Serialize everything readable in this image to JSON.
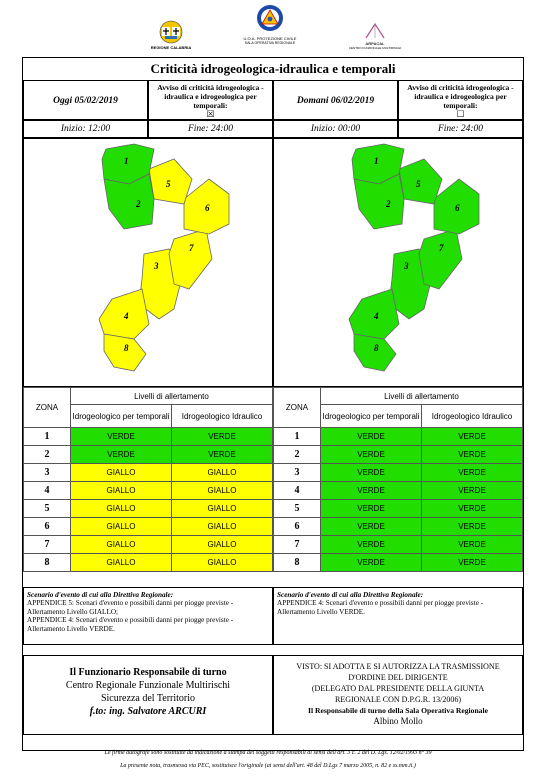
{
  "logos": {
    "left_caption": "REGIONE CALABRIA",
    "center_caption_1": "U.O.A. PROTEZIONE CIVILE",
    "center_caption_2": "SALA OPERATIVA REGIONALE",
    "right_caption_1": "ARPACAL",
    "right_caption_2": "CENTRO FUNZIONALE MULTIRISCHI"
  },
  "title": "Criticità idrogeologica-idraulica e temporali",
  "today": {
    "date": "Oggi 05/02/2019",
    "avviso": "Avviso di criticità idrogeologica - idraulica e idrogeologica per temporali:",
    "checkbox": "☒",
    "start": "Inizio: 12:00",
    "end": "Fine: 24:00"
  },
  "tomorrow": {
    "date": "Domani 06/02/2019",
    "avviso": "Avviso di criticità idrogeologica - idraulica e idrogeologica per temporali:",
    "checkbox": "☐",
    "start": "Inizio: 00:00",
    "end": "Fine: 24:00"
  },
  "zone_numbers": [
    "1",
    "2",
    "5",
    "6",
    "3",
    "7",
    "4",
    "8"
  ],
  "table_headers": {
    "zona": "ZONA",
    "livelli": "Livelli di allertamento",
    "col1": "Idrogeologico per temporali",
    "col2": "Idrogeologico Idraulico"
  },
  "today_rows": [
    {
      "zone": "1",
      "a": "VERDE",
      "b": "VERDE",
      "level": "green"
    },
    {
      "zone": "2",
      "a": "VERDE",
      "b": "VERDE",
      "level": "green"
    },
    {
      "zone": "3",
      "a": "GIALLO",
      "b": "GIALLO",
      "level": "yellow"
    },
    {
      "zone": "4",
      "a": "GIALLO",
      "b": "GIALLO",
      "level": "yellow"
    },
    {
      "zone": "5",
      "a": "GIALLO",
      "b": "GIALLO",
      "level": "yellow"
    },
    {
      "zone": "6",
      "a": "GIALLO",
      "b": "GIALLO",
      "level": "yellow"
    },
    {
      "zone": "7",
      "a": "GIALLO",
      "b": "GIALLO",
      "level": "yellow"
    },
    {
      "zone": "8",
      "a": "GIALLO",
      "b": "GIALLO",
      "level": "yellow"
    }
  ],
  "tomorrow_rows": [
    {
      "zone": "1",
      "a": "VERDE",
      "b": "VERDE",
      "level": "green"
    },
    {
      "zone": "2",
      "a": "VERDE",
      "b": "VERDE",
      "level": "green"
    },
    {
      "zone": "3",
      "a": "VERDE",
      "b": "VERDE",
      "level": "green"
    },
    {
      "zone": "4",
      "a": "VERDE",
      "b": "VERDE",
      "level": "green"
    },
    {
      "zone": "5",
      "a": "VERDE",
      "b": "VERDE",
      "level": "green"
    },
    {
      "zone": "6",
      "a": "VERDE",
      "b": "VERDE",
      "level": "green"
    },
    {
      "zone": "7",
      "a": "VERDE",
      "b": "VERDE",
      "level": "green"
    },
    {
      "zone": "8",
      "a": "VERDE",
      "b": "VERDE",
      "level": "green"
    }
  ],
  "colors": {
    "green": "#22dd00",
    "yellow": "#ffff00"
  },
  "scenario_today": {
    "heading": "Scenario d'evento di cui alla Direttiva Regionale:",
    "line1": "APPENDICE 5: Scenari d'evento e possibili danni per piogge previste - Allertamento Livello GIALLO;",
    "line2": "APPENDICE 4: Scenari d'evento e possibili danni per piogge previste - Allertamento Livello VERDE."
  },
  "scenario_tomorrow": {
    "heading": "Scenario d'evento di cui alla Direttiva Regionale:",
    "line1": "APPENDICE 4: Scenari d'evento e possibili danni per piogge previste - Allertamento Livello VERDE."
  },
  "footer_left": {
    "l1": "Il Funzionario Responsabile di turno",
    "l2": "Centro Regionale Funzionale Multirischi",
    "l3": "Sicurezza del Territorio",
    "l4": "f.to: ing. Salvatore ARCURI"
  },
  "footer_right": {
    "l1": "VISTO: SI ADOTTA E SI AUTORIZZA LA TRASMISSIONE",
    "l2": "D'ORDINE DEL DIRIGENTE",
    "l3": "(DELEGATO DAL PRESIDENTE DELLA GIUNTA",
    "l4": "REGIONALE CON D.P.G.R. 13/2006)",
    "l5": "Il Responsabile di turno della Sala Operativa Regionale",
    "l6": "Albino Mollo"
  },
  "notes": {
    "n1": "Le firme autografe sono sostituite da indicazione a stampa dei soggetti responsabili ai sensi dell'art. 3 c. 2 del D. Lgs. 12/02/1993 n° 39",
    "n2": "La presente nota, trasmessa via PEC, sostituisce l'originale (ai sensi dell'art. 48 del D.Lgs 7 marzo 2005, n. 82 e ss.mm.ii.)"
  }
}
